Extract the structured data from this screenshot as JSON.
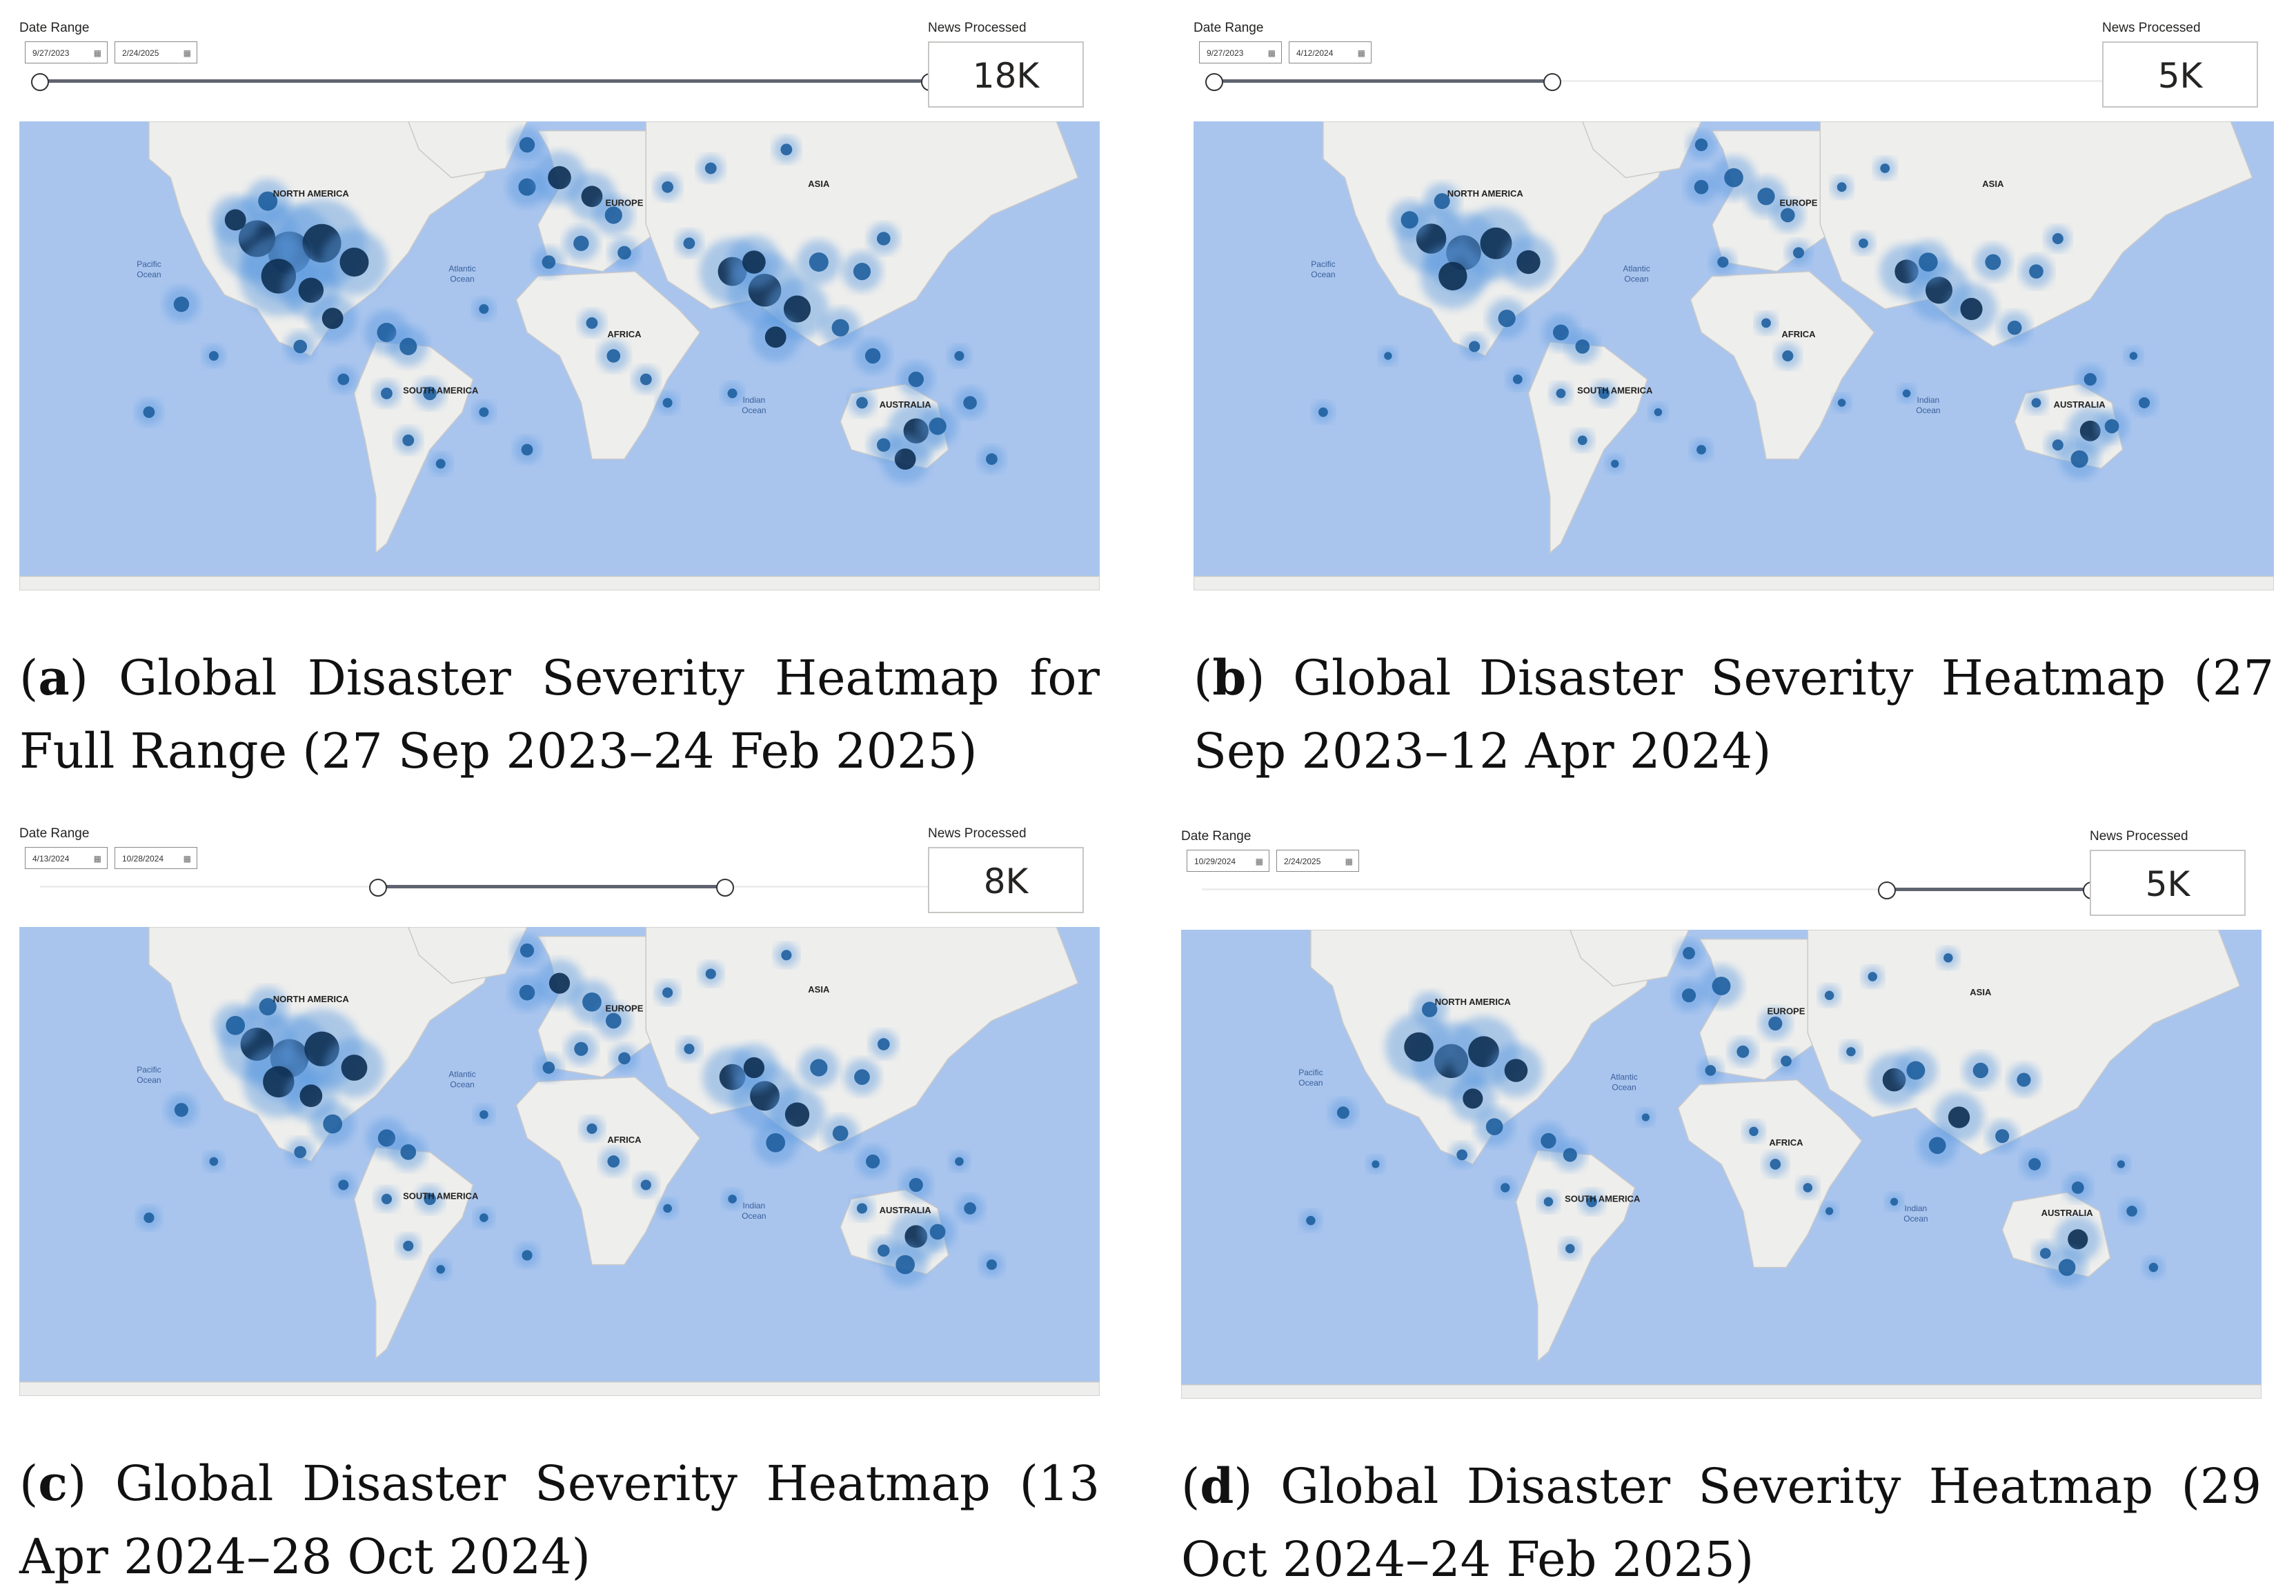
{
  "common": {
    "date_range_label": "Date Range",
    "news_label": "News Processed",
    "map_labels": {
      "north_america": "NORTH AMERICA",
      "south_america": "SOUTH AMERICA",
      "europe": "EUROPE",
      "asia": "ASIA",
      "africa": "AFRICA",
      "australia": "AUSTRALIA",
      "pacific": "Pacific",
      "ocean": "Ocean",
      "atlantic": "Atlantic",
      "indian": "Indian"
    },
    "colors": {
      "ocean": "#a9c5ee",
      "land": "#eeeeec",
      "border": "#c9c9c9",
      "hotspot_dark": "#0d2f52",
      "hotspot_mid": "#1f5f9f",
      "hotspot_light": "#5b9ae0"
    }
  },
  "panels": [
    {
      "id": "a",
      "start_date": "9/27/2023",
      "end_date": "2/24/2025",
      "slider_start": 0.0,
      "slider_end": 1.0,
      "news_processed": "18K",
      "caption_letter": "a",
      "caption_text": "Global Disaster Severity Heatmap for Full Range (27 Sep 2023–24 Feb 2025)",
      "intensity": 1.0
    },
    {
      "id": "b",
      "start_date": "9/27/2023",
      "end_date": "4/12/2024",
      "slider_start": 0.0,
      "slider_end": 0.38,
      "news_processed": "5K",
      "caption_letter": "b",
      "caption_text": "Global Disaster Severity Heatmap (27 Sep 2023–12 Apr 2024)",
      "intensity": 0.55
    },
    {
      "id": "c",
      "start_date": "4/13/2024",
      "end_date": "10/28/2024",
      "slider_start": 0.38,
      "slider_end": 0.77,
      "news_processed": "8K",
      "caption_letter": "c",
      "caption_text": "Global Disaster Severity Heatmap (13 Apr 2024–28 Oct 2024)",
      "intensity": 0.75
    },
    {
      "id": "d",
      "start_date": "10/29/2024",
      "end_date": "2/24/2025",
      "slider_start": 0.77,
      "slider_end": 1.0,
      "news_processed": "5K",
      "caption_letter": "d",
      "caption_text": "Global Disaster Severity Heatmap (29 Oct 2024–24 Feb 2025)",
      "intensity": 0.5
    }
  ]
}
